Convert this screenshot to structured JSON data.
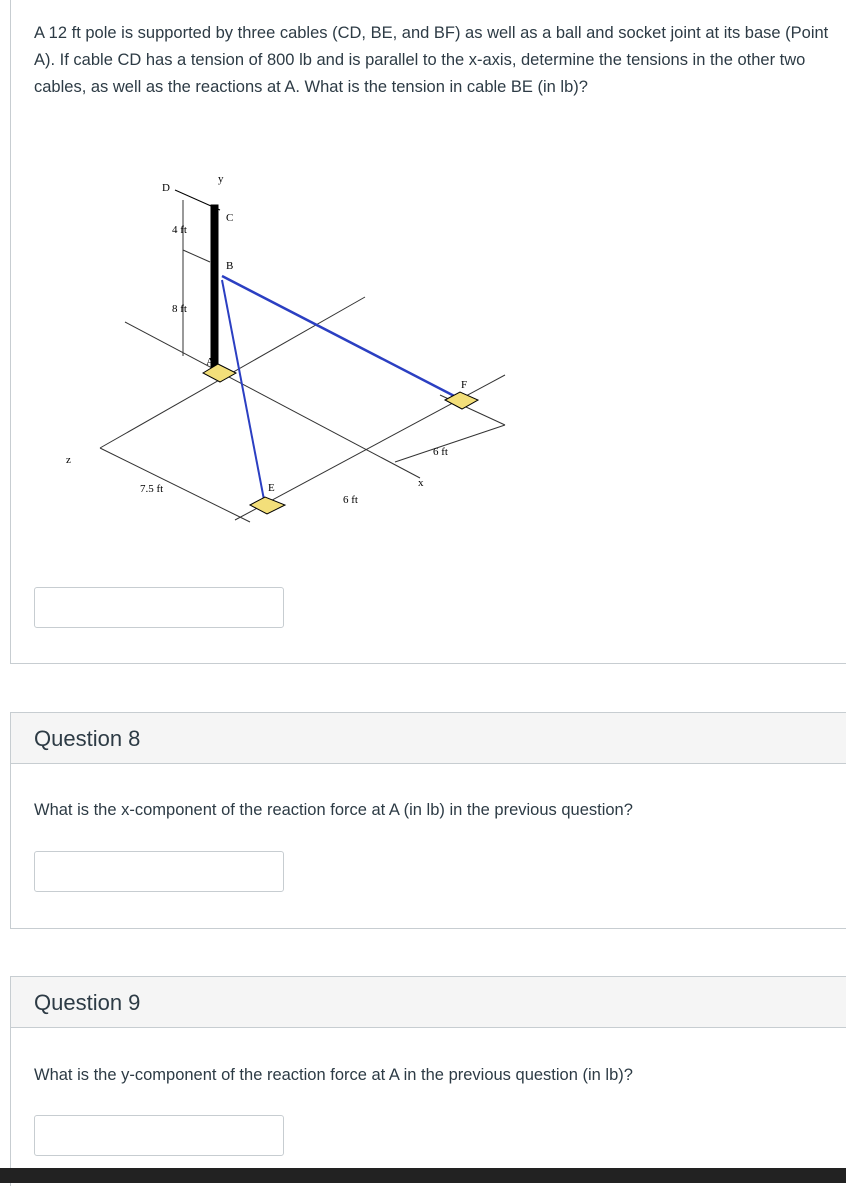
{
  "questions": [
    {
      "text": "A 12 ft pole is supported by three cables (CD, BE, and BF) as well as a ball and socket joint at its base (Point A).  If cable CD has a tension of 800 lb and is parallel to the x-axis, determine the tensions in the other two cables, as well as the reactions at A. What is the tension in cable BE (in lb)?"
    },
    {
      "title": "Question 8",
      "text": "What is the x-component of the reaction force at A (in lb) in the previous question?"
    },
    {
      "title": "Question 9",
      "text": "What is the y-component of the reaction force at A in the previous question (in lb)?"
    }
  ],
  "diagram": {
    "labels": [
      "D",
      "y",
      "C",
      "4 ft",
      "B",
      "8 ft",
      "A",
      "F",
      "6 ft",
      "z",
      "7.5 ft",
      "E",
      "6 ft",
      "x"
    ]
  }
}
